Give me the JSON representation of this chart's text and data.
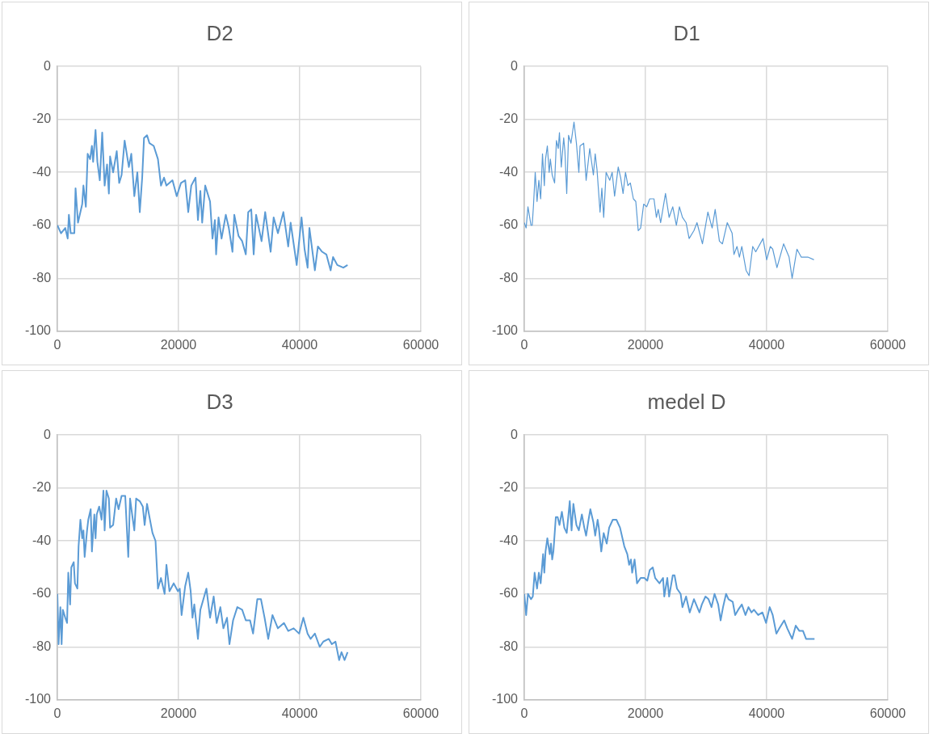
{
  "chart_data": [
    {
      "type": "line",
      "title": "D2",
      "color": "#5b9bd5",
      "marker": "none",
      "grid": true,
      "legend": false,
      "xlim": [
        0,
        60000
      ],
      "xticks": [
        0,
        20000,
        40000,
        60000
      ],
      "ylim": [
        -100,
        0
      ],
      "yticks": [
        -100,
        -80,
        -60,
        -40,
        -20,
        0
      ],
      "x": [
        0,
        600,
        1300,
        1700,
        1900,
        2200,
        2800,
        3000,
        3400,
        4100,
        4300,
        4700,
        5000,
        5400,
        5700,
        5900,
        6300,
        6600,
        7000,
        7400,
        7800,
        8200,
        8500,
        8700,
        9200,
        9800,
        10200,
        10600,
        11100,
        11800,
        12200,
        12700,
        13200,
        13600,
        14000,
        14300,
        14800,
        15200,
        15900,
        16600,
        17100,
        17600,
        18000,
        19000,
        19700,
        20400,
        21100,
        21600,
        22100,
        22800,
        23200,
        23600,
        23900,
        24400,
        25200,
        25600,
        26000,
        26200,
        26600,
        27100,
        27800,
        28300,
        28900,
        29200,
        29900,
        30500,
        31100,
        31500,
        32000,
        32400,
        32800,
        33700,
        34300,
        35200,
        35700,
        36400,
        37300,
        38100,
        38500,
        39500,
        40300,
        40800,
        41300,
        41600,
        42500,
        43000,
        43700,
        44400,
        45100,
        45500,
        46200,
        47200,
        47900
      ],
      "values": [
        -60,
        -63,
        -61,
        -65,
        -56,
        -63,
        -63,
        -46,
        -59,
        -52,
        -45,
        -53,
        -33,
        -35,
        -30,
        -36,
        -24,
        -36,
        -43,
        -25,
        -45,
        -37,
        -48,
        -34,
        -40,
        -32,
        -44,
        -41,
        -28,
        -38,
        -33,
        -49,
        -40,
        -55,
        -42,
        -27,
        -26,
        -29,
        -30,
        -35,
        -45,
        -42,
        -45,
        -43,
        -49,
        -44,
        -43,
        -55,
        -45,
        -42,
        -58,
        -47,
        -59,
        -45,
        -51,
        -65,
        -58,
        -71,
        -57,
        -65,
        -56,
        -61,
        -70,
        -56,
        -64,
        -66,
        -71,
        -55,
        -54,
        -71,
        -56,
        -66,
        -55,
        -70,
        -57,
        -63,
        -55,
        -68,
        -59,
        -75,
        -57,
        -69,
        -76,
        -61,
        -77,
        -68,
        -70,
        -71,
        -77,
        -72,
        -75,
        -76,
        -75
      ]
    },
    {
      "type": "line",
      "title": "D1",
      "color": "#5b9bd5",
      "marker": "none",
      "grid": true,
      "legend": false,
      "xlim": [
        0,
        60000
      ],
      "xticks": [
        0,
        20000,
        40000,
        60000
      ],
      "ylim": [
        -100,
        0
      ],
      "yticks": [
        -100,
        -80,
        -60,
        -40,
        -20,
        0
      ],
      "x": [
        0,
        300,
        600,
        1100,
        1300,
        1500,
        1800,
        2100,
        2400,
        2700,
        3000,
        3300,
        3500,
        3800,
        4100,
        4300,
        4600,
        5000,
        5300,
        5600,
        5800,
        6100,
        6500,
        6700,
        7000,
        7300,
        7700,
        8200,
        8600,
        9000,
        9200,
        9800,
        10200,
        10800,
        11400,
        11700,
        12000,
        12500,
        12800,
        13100,
        13500,
        14100,
        14500,
        14900,
        15500,
        15900,
        16300,
        16700,
        17100,
        17500,
        18000,
        18400,
        18800,
        19200,
        19700,
        20200,
        20700,
        21400,
        21800,
        22100,
        22500,
        23300,
        23900,
        24500,
        25100,
        25600,
        26100,
        26700,
        27200,
        28000,
        28500,
        29400,
        30300,
        31000,
        31500,
        32200,
        32700,
        33500,
        34300,
        34600,
        35100,
        35500,
        35900,
        36600,
        37100,
        37700,
        38200,
        39400,
        40000,
        40600,
        41000,
        41700,
        42800,
        43700,
        44200,
        45000,
        45700,
        46100,
        46800,
        47800
      ],
      "values": [
        -59,
        -61,
        -53,
        -60,
        -60,
        -53,
        -40,
        -51,
        -43,
        -50,
        -33,
        -45,
        -35,
        -30,
        -40,
        -35,
        -41,
        -44,
        -28,
        -31,
        -25,
        -38,
        -27,
        -32,
        -48,
        -26,
        -29,
        -21,
        -29,
        -40,
        -30,
        -29,
        -43,
        -31,
        -41,
        -33,
        -39,
        -55,
        -46,
        -57,
        -40,
        -43,
        -40,
        -49,
        -38,
        -42,
        -48,
        -40,
        -45,
        -44,
        -50,
        -51,
        -62,
        -61,
        -52,
        -53,
        -50,
        -50,
        -57,
        -54,
        -59,
        -48,
        -57,
        -53,
        -60,
        -53,
        -57,
        -59,
        -65,
        -62,
        -59,
        -67,
        -55,
        -61,
        -54,
        -66,
        -67,
        -59,
        -63,
        -71,
        -68,
        -72,
        -68,
        -77,
        -79,
        -68,
        -70,
        -65,
        -73,
        -68,
        -69,
        -76,
        -67,
        -72,
        -80,
        -69,
        -72,
        -72,
        -72,
        -73
      ]
    },
    {
      "type": "line",
      "title": "D3",
      "color": "#5b9bd5",
      "marker": "none",
      "grid": true,
      "legend": false,
      "xlim": [
        0,
        60000
      ],
      "xticks": [
        0,
        20000,
        40000,
        60000
      ],
      "ylim": [
        -100,
        0
      ],
      "yticks": [
        -100,
        -80,
        -60,
        -40,
        -20,
        0
      ],
      "x": [
        0,
        200,
        500,
        700,
        900,
        1300,
        1600,
        1800,
        2100,
        2300,
        2700,
        2900,
        3300,
        3500,
        3800,
        4100,
        4300,
        4500,
        4900,
        5100,
        5500,
        5700,
        6100,
        6300,
        6500,
        6900,
        7300,
        7600,
        7800,
        8100,
        8500,
        8700,
        9200,
        9700,
        10100,
        10600,
        11200,
        11700,
        12000,
        12400,
        12700,
        13000,
        13600,
        14100,
        14400,
        14800,
        15200,
        15700,
        16200,
        16600,
        17100,
        17700,
        18000,
        18500,
        19200,
        19900,
        20200,
        20500,
        21100,
        21600,
        22000,
        22300,
        22600,
        23200,
        23600,
        24600,
        25200,
        25800,
        26300,
        26900,
        27400,
        28000,
        28400,
        29000,
        29700,
        30500,
        31100,
        31800,
        32300,
        33000,
        33600,
        34200,
        34800,
        35500,
        36400,
        37400,
        38100,
        39000,
        39900,
        40600,
        41300,
        41800,
        42500,
        43300,
        43900,
        44800,
        45300,
        45900,
        46500,
        46900,
        47400,
        47900
      ],
      "values": [
        -60,
        -79,
        -65,
        -79,
        -66,
        -69,
        -71,
        -52,
        -64,
        -50,
        -48,
        -56,
        -58,
        -42,
        -32,
        -39,
        -36,
        -46,
        -36,
        -32,
        -28,
        -44,
        -30,
        -39,
        -30,
        -27,
        -32,
        -21,
        -36,
        -21,
        -24,
        -35,
        -34,
        -24,
        -28,
        -23,
        -23,
        -46,
        -24,
        -31,
        -36,
        -24,
        -25,
        -27,
        -34,
        -26,
        -31,
        -37,
        -40,
        -58,
        -54,
        -60,
        -49,
        -59,
        -56,
        -59,
        -58,
        -68,
        -57,
        -52,
        -59,
        -69,
        -64,
        -77,
        -66,
        -58,
        -69,
        -61,
        -71,
        -65,
        -73,
        -69,
        -79,
        -70,
        -65,
        -66,
        -70,
        -70,
        -75,
        -62,
        -62,
        -69,
        -77,
        -68,
        -73,
        -71,
        -74,
        -73,
        -75,
        -69,
        -75,
        -77,
        -75,
        -80,
        -78,
        -77,
        -79,
        -78,
        -85,
        -82,
        -85,
        -82
      ]
    },
    {
      "type": "line",
      "title": "medel D",
      "color": "#5b9bd5",
      "marker": "none",
      "grid": true,
      "legend": false,
      "xlim": [
        0,
        60000
      ],
      "xticks": [
        0,
        20000,
        40000,
        60000
      ],
      "ylim": [
        -100,
        0
      ],
      "yticks": [
        -100,
        -80,
        -60,
        -40,
        -20,
        0
      ],
      "x": [
        0,
        300,
        600,
        1100,
        1400,
        1700,
        2100,
        2400,
        2700,
        3100,
        3300,
        3500,
        3800,
        4200,
        4400,
        4600,
        4800,
        5200,
        5500,
        5800,
        6200,
        6600,
        7000,
        7500,
        7800,
        8100,
        8600,
        9000,
        9500,
        9900,
        10200,
        10600,
        10900,
        11400,
        11700,
        12100,
        12300,
        12700,
        13100,
        13600,
        14000,
        14600,
        15200,
        15800,
        16500,
        17000,
        17300,
        17600,
        17800,
        18200,
        18600,
        19200,
        19800,
        20300,
        20700,
        21200,
        21600,
        22300,
        22900,
        23100,
        23600,
        23900,
        24500,
        24800,
        25200,
        25800,
        26100,
        26700,
        27300,
        28000,
        28900,
        29300,
        29900,
        30400,
        30900,
        31400,
        32000,
        32400,
        32800,
        33300,
        33700,
        34400,
        34800,
        35300,
        35900,
        36500,
        37000,
        37500,
        37900,
        38600,
        39300,
        39900,
        40500,
        41000,
        41600,
        42100,
        42900,
        43400,
        44200,
        44800,
        45400,
        46000,
        46500,
        47900
      ],
      "values": [
        -60,
        -68,
        -60,
        -62,
        -61,
        -52,
        -58,
        -52,
        -56,
        -45,
        -52,
        -44,
        -39,
        -45,
        -41,
        -47,
        -44,
        -31,
        -31,
        -34,
        -29,
        -35,
        -37,
        -25,
        -36,
        -26,
        -34,
        -36,
        -30,
        -35,
        -38,
        -32,
        -28,
        -33,
        -38,
        -32,
        -35,
        -44,
        -37,
        -41,
        -35,
        -32,
        -32,
        -35,
        -42,
        -45,
        -49,
        -47,
        -52,
        -47,
        -56,
        -54,
        -54,
        -55,
        -51,
        -50,
        -54,
        -56,
        -54,
        -61,
        -54,
        -61,
        -53,
        -53,
        -58,
        -60,
        -65,
        -61,
        -67,
        -62,
        -67,
        -64,
        -61,
        -62,
        -65,
        -60,
        -64,
        -70,
        -65,
        -60,
        -62,
        -63,
        -68,
        -66,
        -64,
        -68,
        -65,
        -67,
        -66,
        -68,
        -67,
        -71,
        -65,
        -68,
        -75,
        -73,
        -70,
        -73,
        -77,
        -72,
        -74,
        -74,
        -77,
        -77
      ]
    }
  ]
}
